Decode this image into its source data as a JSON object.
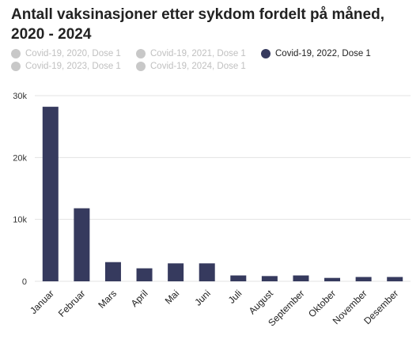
{
  "title": "Antall vaksinasjoner etter sykdom fordelt på måned, 2020 - 2024",
  "legend": [
    {
      "label": "Covid-19, 2020, Dose 1",
      "active": false,
      "color": "#c8c8c8"
    },
    {
      "label": "Covid-19, 2021, Dose 1",
      "active": false,
      "color": "#c8c8c8"
    },
    {
      "label": "Covid-19, 2022, Dose 1",
      "active": true,
      "color": "#363a5e"
    },
    {
      "label": "Covid-19, 2023, Dose 1",
      "active": false,
      "color": "#c8c8c8"
    },
    {
      "label": "Covid-19, 2024, Dose 1",
      "active": false,
      "color": "#c8c8c8"
    }
  ],
  "chart_data": {
    "type": "bar",
    "categories": [
      "Januar",
      "Februar",
      "Mars",
      "April",
      "Mai",
      "Juni",
      "Juli",
      "August",
      "September",
      "Oktober",
      "November",
      "Desember"
    ],
    "series": [
      {
        "name": "Covid-19, 2022, Dose 1",
        "color": "#363a5e",
        "values": [
          28200,
          11800,
          3100,
          2100,
          2900,
          2900,
          950,
          850,
          950,
          550,
          700,
          700
        ]
      }
    ],
    "ylim": [
      0,
      30000
    ],
    "yticks": [
      0,
      10000,
      20000,
      30000
    ],
    "ytick_labels": [
      "0",
      "10k",
      "20k",
      "30k"
    ],
    "grid": true
  }
}
